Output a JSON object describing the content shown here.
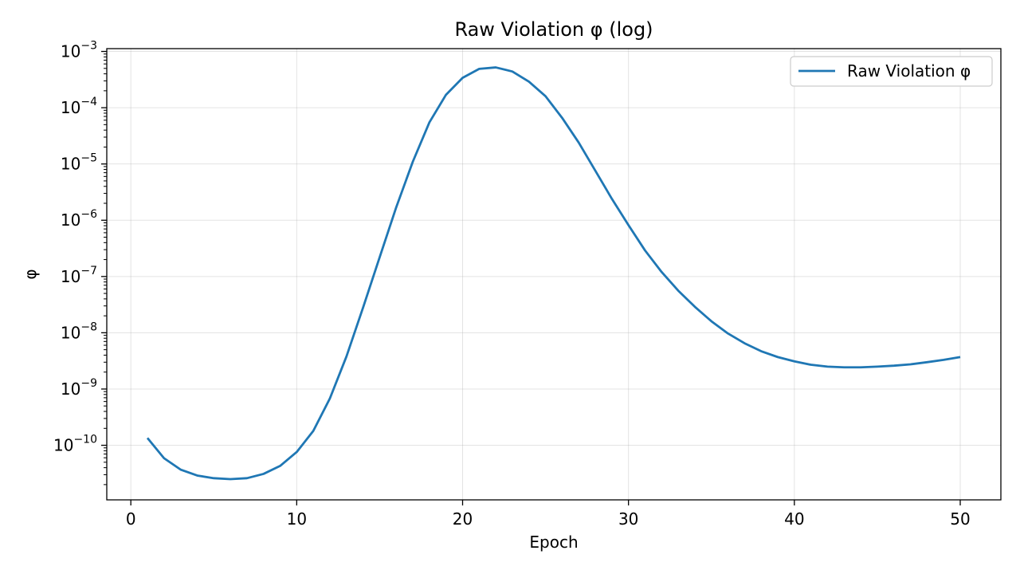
{
  "chart_data": {
    "type": "line",
    "title": "Raw Violation φ (log)",
    "xlabel": "Epoch",
    "ylabel": "φ",
    "yscale": "log",
    "xlim": [
      -1.45,
      52.45
    ],
    "ylim_log10": [
      -10.97,
      -2.95
    ],
    "xticks": [
      0,
      10,
      20,
      30,
      40,
      50
    ],
    "xtick_labels": [
      "0",
      "10",
      "20",
      "30",
      "40",
      "50"
    ],
    "yticks": [
      {
        "base": "10",
        "exp": "−10",
        "pow": -10
      },
      {
        "base": "10",
        "exp": "−9",
        "pow": -9
      },
      {
        "base": "10",
        "exp": "−8",
        "pow": -8
      },
      {
        "base": "10",
        "exp": "−7",
        "pow": -7
      },
      {
        "base": "10",
        "exp": "−6",
        "pow": -6
      },
      {
        "base": "10",
        "exp": "−5",
        "pow": -5
      },
      {
        "base": "10",
        "exp": "−4",
        "pow": -4
      },
      {
        "base": "10",
        "exp": "−3",
        "pow": -3
      }
    ],
    "grid": true,
    "legend_position": "top-right",
    "series": [
      {
        "name": "Raw Violation φ",
        "color": "#1f77b4",
        "x": [
          1,
          2,
          3,
          4,
          5,
          6,
          7,
          8,
          9,
          10,
          11,
          12,
          13,
          14,
          15,
          16,
          17,
          18,
          19,
          20,
          21,
          22,
          23,
          24,
          25,
          26,
          27,
          28,
          29,
          30,
          31,
          32,
          33,
          34,
          35,
          36,
          37,
          38,
          39,
          40,
          41,
          42,
          43,
          44,
          45,
          46,
          47,
          48,
          49,
          50
        ],
        "y": [
          1.35e-10,
          5.9e-11,
          3.7e-11,
          2.9e-11,
          2.6e-11,
          2.5e-11,
          2.6e-11,
          3.1e-11,
          4.3e-11,
          7.6e-11,
          1.8e-10,
          6.8e-10,
          3.8e-09,
          2.8e-08,
          2.2e-07,
          1.7e-06,
          1.1e-05,
          5.5e-05,
          0.00017,
          0.00034,
          0.00049,
          0.00052,
          0.00044,
          0.00029,
          0.00016,
          6.6e-05,
          2.4e-05,
          7.6e-06,
          2.4e-06,
          8.2e-07,
          2.9e-07,
          1.2e-07,
          5.6e-08,
          2.9e-08,
          1.6e-08,
          9.7e-09,
          6.5e-09,
          4.7e-09,
          3.7e-09,
          3.1e-09,
          2.7e-09,
          2.5e-09,
          2.43e-09,
          2.43e-09,
          2.5e-09,
          2.6e-09,
          2.75e-09,
          3e-09,
          3.3e-09,
          3.7e-09
        ]
      }
    ]
  }
}
